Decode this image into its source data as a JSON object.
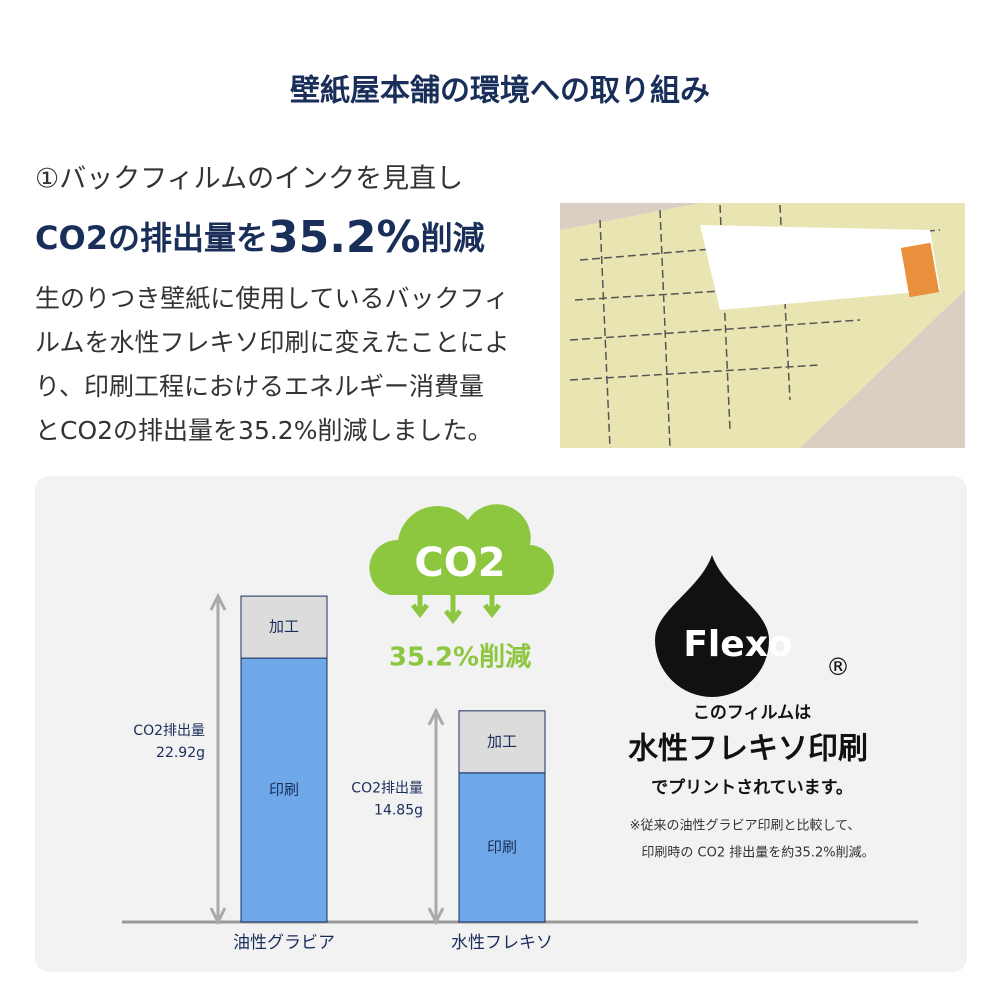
{
  "header": {
    "title": "壁紙屋本舗の環境への取り組み"
  },
  "section": {
    "subtitle": "①バックフィルムのインクを見直し",
    "headline": {
      "before": "CO2の排出量を",
      "highlight": "35.2%",
      "after": "削減"
    },
    "body": [
      "生のりつき壁紙に使用しているバックフィ",
      "ルムを水性フレキソ印刷に変えたことによ",
      "り、印刷工程におけるエネルギー消費量",
      "とCO2の排出量を35.2%削減しました。"
    ]
  },
  "chart": {
    "axis_label": "CO2排出量",
    "bars": [
      {
        "name": "油性グラビア",
        "value": 22.92,
        "value_label": "22.92g",
        "segments": [
          "加工",
          "印刷"
        ]
      },
      {
        "name": "水性フレキソ",
        "value": 14.85,
        "value_label": "14.85g",
        "segments": [
          "加工",
          "印刷"
        ]
      }
    ],
    "badge": {
      "label": "CO2",
      "reduction": "35.2%削減"
    }
  },
  "flexo": {
    "logo": "Flexo",
    "mark": "®",
    "line1": "このフィルムは",
    "line2": "水性フレキソ印刷",
    "line3": "でプリントされています。",
    "note1": "※従来の油性グラビア印刷と比較して、",
    "note2": "印刷時の CO2 排出量を約35.2%削減。"
  }
}
